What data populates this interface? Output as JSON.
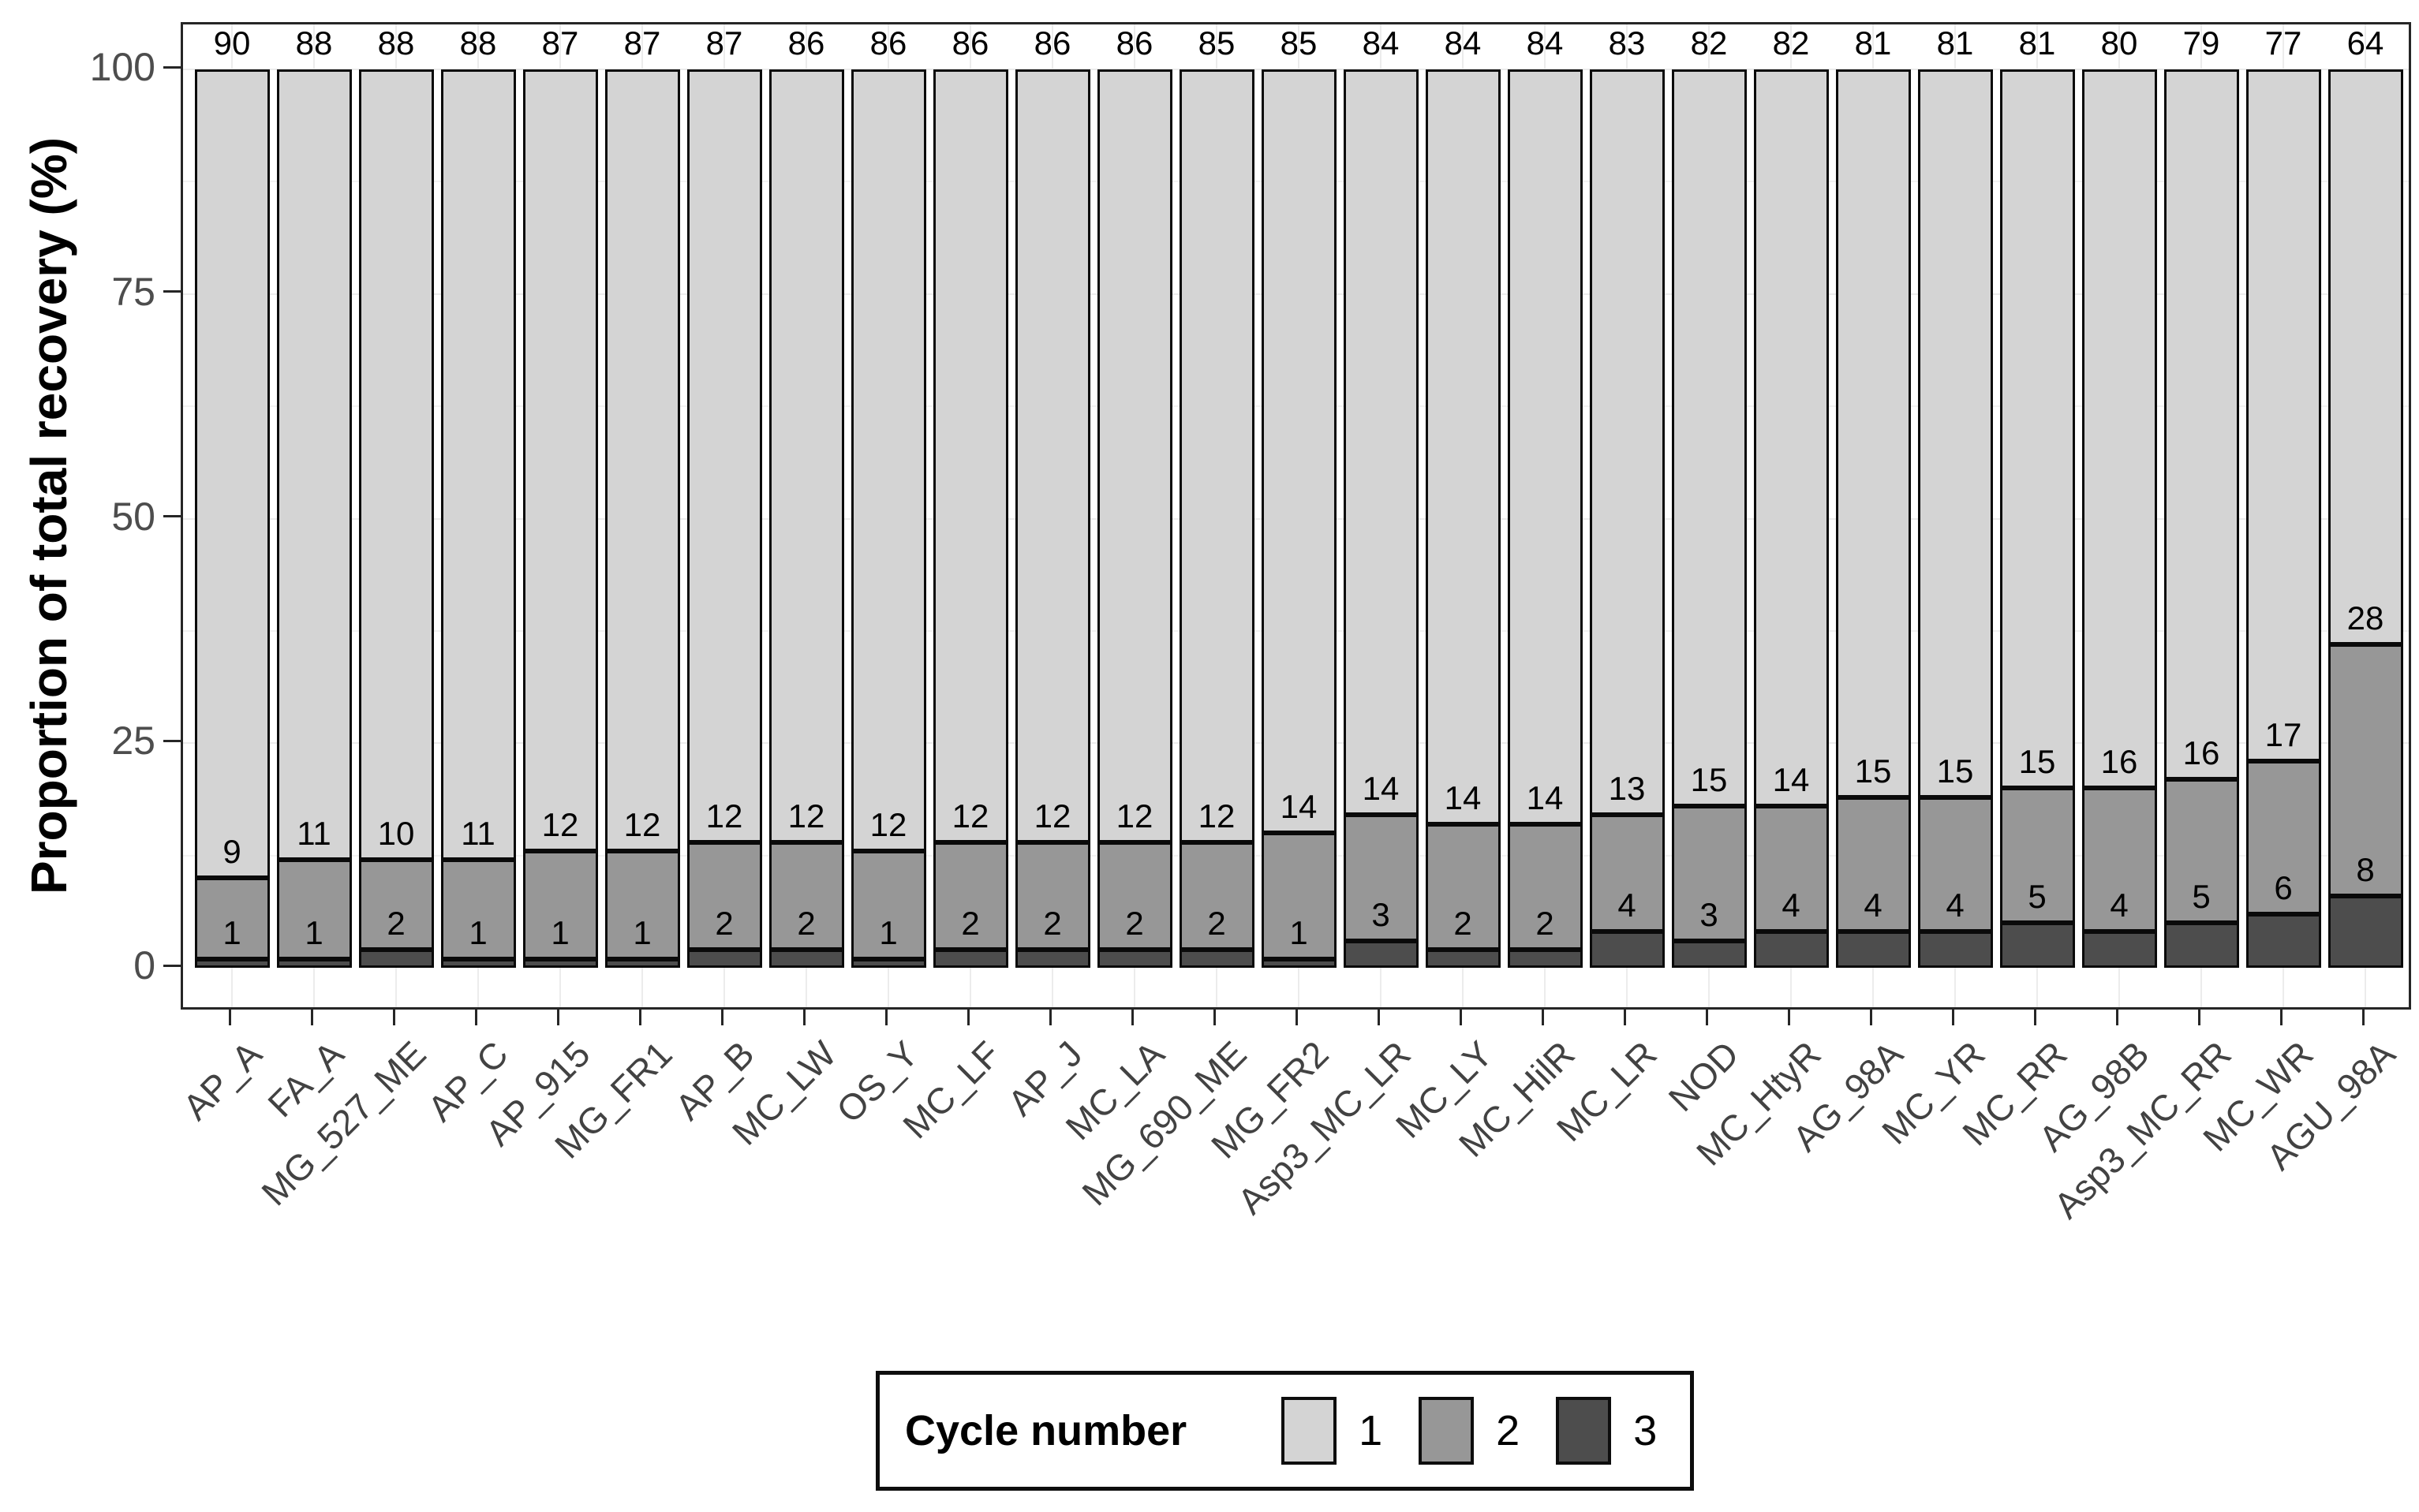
{
  "figure": {
    "y_axis_title": "Proportion of total recovery (%)",
    "y_tick_labels": [
      "0",
      "25",
      "50",
      "75",
      "100"
    ],
    "legend": {
      "title": "Cycle number",
      "entries": [
        {
          "label": "1",
          "color": "#d4d4d4"
        },
        {
          "label": "2",
          "color": "#979797"
        },
        {
          "label": "3",
          "color": "#4d4d4d"
        }
      ]
    }
  },
  "chart_data": {
    "type": "bar",
    "stacked": true,
    "orientation": "vertical",
    "title": "",
    "xlabel": "",
    "ylabel": "Proportion of total recovery (%)",
    "ylim": [
      0,
      100
    ],
    "y_ticks": [
      0,
      25,
      50,
      75,
      100
    ],
    "legend_title": "Cycle number",
    "legend_position": "bottom",
    "grid": "faint vertical gridlines at category centers; faint horizontal minor gridlines",
    "bar_outline": "#0a0a0a",
    "segment_value_labels_visible": true,
    "categories": [
      "AP_A",
      "FA_A",
      "MG_527_ME",
      "AP_C",
      "AP_915",
      "MG_FR1",
      "AP_B",
      "MC_LW",
      "OS_Y",
      "MC_LF",
      "AP_J",
      "MC_LA",
      "MG_690_ME",
      "MG_FR2",
      "Asp3_MC_LR",
      "MC_LY",
      "MC_HilR",
      "MC_LR",
      "NOD",
      "MC_HtyR",
      "AG_98A",
      "MC_YR",
      "MC_RR",
      "AG_98B",
      "Asp3_MC_RR",
      "MC_WR",
      "AGU_98A"
    ],
    "series": [
      {
        "name": "1",
        "color": "#d4d4d4",
        "values": [
          90,
          88,
          88,
          88,
          87,
          87,
          87,
          86,
          86,
          86,
          86,
          86,
          85,
          85,
          84,
          84,
          84,
          83,
          82,
          82,
          81,
          81,
          81,
          80,
          79,
          77,
          64
        ]
      },
      {
        "name": "2",
        "color": "#979797",
        "values": [
          9,
          11,
          10,
          11,
          12,
          12,
          12,
          12,
          12,
          12,
          12,
          12,
          12,
          14,
          14,
          14,
          14,
          13,
          15,
          14,
          15,
          15,
          15,
          16,
          16,
          17,
          28
        ]
      },
      {
        "name": "3",
        "color": "#4d4d4d",
        "values": [
          1,
          1,
          2,
          1,
          1,
          1,
          2,
          2,
          1,
          2,
          2,
          2,
          2,
          1,
          3,
          2,
          2,
          4,
          3,
          4,
          4,
          4,
          5,
          4,
          5,
          6,
          8
        ]
      }
    ]
  }
}
